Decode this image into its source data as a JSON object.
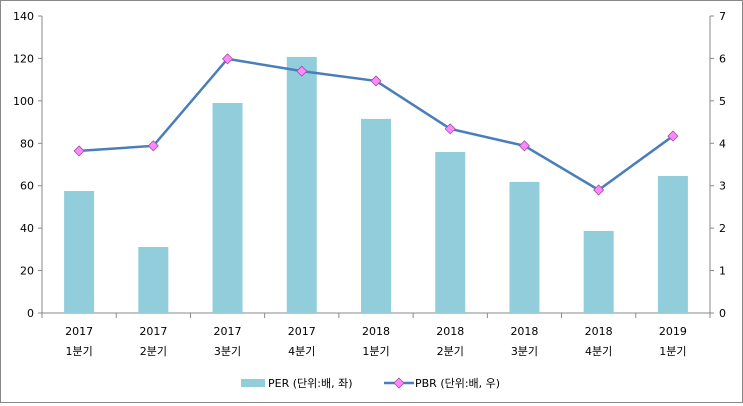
{
  "chart_data": {
    "type": "bar+line",
    "categories": [
      [
        "2017",
        "1분기"
      ],
      [
        "2017",
        "2분기"
      ],
      [
        "2017",
        "3분기"
      ],
      [
        "2017",
        "4분기"
      ],
      [
        "2018",
        "1분기"
      ],
      [
        "2018",
        "2분기"
      ],
      [
        "2018",
        "3분기"
      ],
      [
        "2018",
        "4분기"
      ],
      [
        "2019",
        "1분기"
      ]
    ],
    "series": [
      {
        "name": "PER (단위:배, 좌)",
        "type": "bar",
        "axis": "left",
        "color": "#92CDDC",
        "values": [
          57.5,
          31.1,
          99.0,
          120.7,
          91.5,
          75.9,
          61.8,
          38.7,
          64.6
        ]
      },
      {
        "name": "PBR (단위:배, 우)",
        "type": "line",
        "axis": "right",
        "color": "#4A7EBB",
        "marker_color": "#FF88FF",
        "values": [
          3.82,
          3.94,
          5.99,
          5.7,
          5.47,
          4.34,
          3.94,
          2.9,
          4.17
        ]
      }
    ],
    "y_left": {
      "min": 0,
      "max": 140,
      "ticks": [
        0,
        20,
        40,
        60,
        80,
        100,
        120,
        140
      ]
    },
    "y_right": {
      "min": 0,
      "max": 7,
      "ticks": [
        0,
        1,
        2,
        3,
        4,
        5,
        6,
        7
      ]
    },
    "legend_position": "bottom",
    "grid": false
  }
}
